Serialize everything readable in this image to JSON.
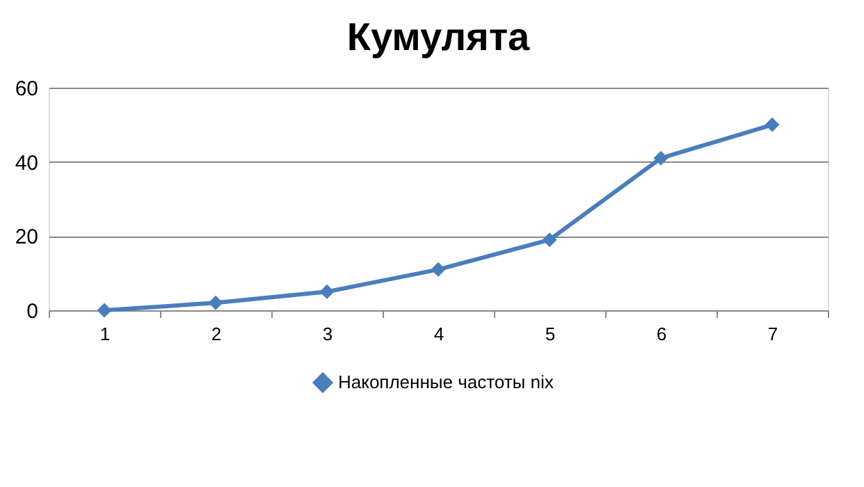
{
  "chart_data": {
    "type": "line",
    "title": "Кумулята",
    "categories": [
      "1",
      "2",
      "3",
      "4",
      "5",
      "6",
      "7"
    ],
    "series": [
      {
        "name": "Накопленные частоты nix",
        "color": "#4a7ebb",
        "values": [
          0,
          2,
          5,
          11,
          19,
          41,
          50
        ]
      }
    ],
    "ylim": [
      0,
      60
    ],
    "yticks": [
      0,
      20,
      40,
      60
    ],
    "grid": "y",
    "legend": "bottom",
    "marker": "diamond",
    "line_style": "solid"
  }
}
